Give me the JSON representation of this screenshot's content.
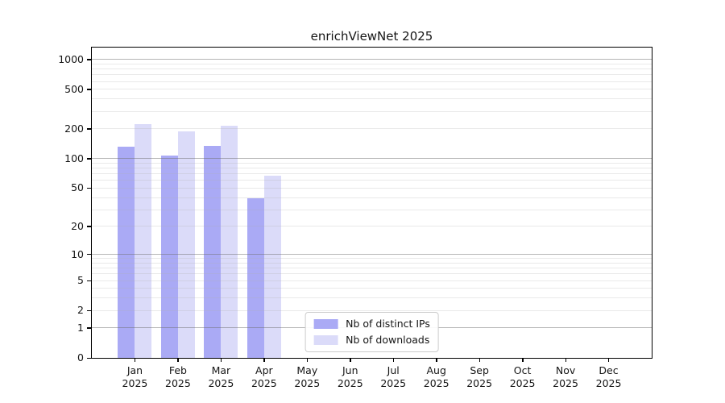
{
  "chart_data": {
    "type": "bar",
    "title": "enrichViewNet 2025",
    "x": {
      "months": [
        "Jan",
        "Feb",
        "Mar",
        "Apr",
        "May",
        "Jun",
        "Jul",
        "Aug",
        "Sep",
        "Oct",
        "Nov",
        "Dec"
      ],
      "year_label": "2025"
    },
    "y_axis": {
      "scale": "log1p",
      "ticks": [
        0,
        1,
        2,
        5,
        10,
        20,
        50,
        100,
        200,
        500,
        1000
      ],
      "range_top": 1320
    },
    "grid": {
      "horizontal": true,
      "minor_decade_multiples": [
        2,
        3,
        4,
        5,
        6,
        7,
        8,
        9
      ],
      "major_values": [
        1,
        10,
        100,
        1000
      ]
    },
    "legend": {
      "position": "lower center"
    },
    "series": [
      {
        "name": "Nb of distinct IPs",
        "color": "#aaaaf5",
        "values": [
          131,
          107,
          134,
          39,
          0,
          0,
          0,
          0,
          0,
          0,
          0,
          0
        ]
      },
      {
        "name": "Nb of downloads",
        "color": "#dbdbf9",
        "values": [
          225,
          187,
          216,
          67,
          0,
          0,
          0,
          0,
          0,
          0,
          0,
          0
        ]
      }
    ]
  }
}
